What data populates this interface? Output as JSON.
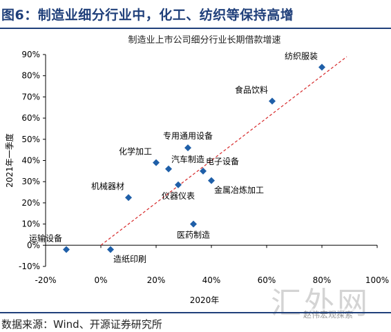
{
  "header": {
    "title": "图6：制造业细分行业中，化工、纺织等保持高增"
  },
  "footer": {
    "source": "数据来源：Wind、开源证券研究所"
  },
  "watermark": {
    "text": "汇外网",
    "badge": "赵伟宏观探索"
  },
  "colors": {
    "header": "#1f3f7a",
    "marker": "#1f5fa8",
    "trendline": "#d62728"
  },
  "chart_data": {
    "type": "scatter",
    "title": "制造业上市公司细分行业长期借款增速",
    "xlabel": "2020年",
    "ylabel": "2021年一季度",
    "xlim": [
      -0.2,
      1.0
    ],
    "ylim": [
      -0.1,
      0.9
    ],
    "xticks": [
      -0.2,
      0,
      0.2,
      0.4,
      0.6,
      0.8,
      1.0
    ],
    "xtick_labels": [
      "-20%",
      "0%",
      "20%",
      "40%",
      "60%",
      "80%",
      "100%"
    ],
    "yticks": [
      -0.1,
      0,
      0.1,
      0.2,
      0.3,
      0.4,
      0.5,
      0.6,
      0.7,
      0.8,
      0.9
    ],
    "ytick_labels": [
      "-10%",
      "0%",
      "10%",
      "20%",
      "30%",
      "40%",
      "50%",
      "60%",
      "70%",
      "80%",
      "90%"
    ],
    "grid": false,
    "trendline": {
      "style": "dashed",
      "x": [
        0,
        0.89
      ],
      "y": [
        0,
        0.89
      ]
    },
    "points": [
      {
        "label": "纺织服装",
        "x": 0.8,
        "y": 0.84,
        "label_pos": "above-left"
      },
      {
        "label": "食品饮料",
        "x": 0.62,
        "y": 0.68,
        "label_pos": "above-left"
      },
      {
        "label": "专用通用设备",
        "x": 0.315,
        "y": 0.46,
        "label_pos": "above"
      },
      {
        "label": "化学加工",
        "x": 0.2,
        "y": 0.39,
        "label_pos": "above-left"
      },
      {
        "label": "汽车制造",
        "x": 0.245,
        "y": 0.36,
        "label_pos": "above-right"
      },
      {
        "label": "电子设备",
        "x": 0.37,
        "y": 0.35,
        "label_pos": "above-right"
      },
      {
        "label": "金属冶炼加工",
        "x": 0.4,
        "y": 0.305,
        "label_pos": "below-right"
      },
      {
        "label": "仪器仪表",
        "x": 0.28,
        "y": 0.285,
        "label_pos": "below"
      },
      {
        "label": "机械器材",
        "x": 0.1,
        "y": 0.225,
        "label_pos": "above-left"
      },
      {
        "label": "医药制造",
        "x": 0.335,
        "y": 0.1,
        "label_pos": "below"
      },
      {
        "label": "运输设备",
        "x": -0.125,
        "y": -0.02,
        "label_pos": "above-left"
      },
      {
        "label": "造纸印刷",
        "x": 0.035,
        "y": -0.02,
        "label_pos": "below-right"
      }
    ]
  }
}
